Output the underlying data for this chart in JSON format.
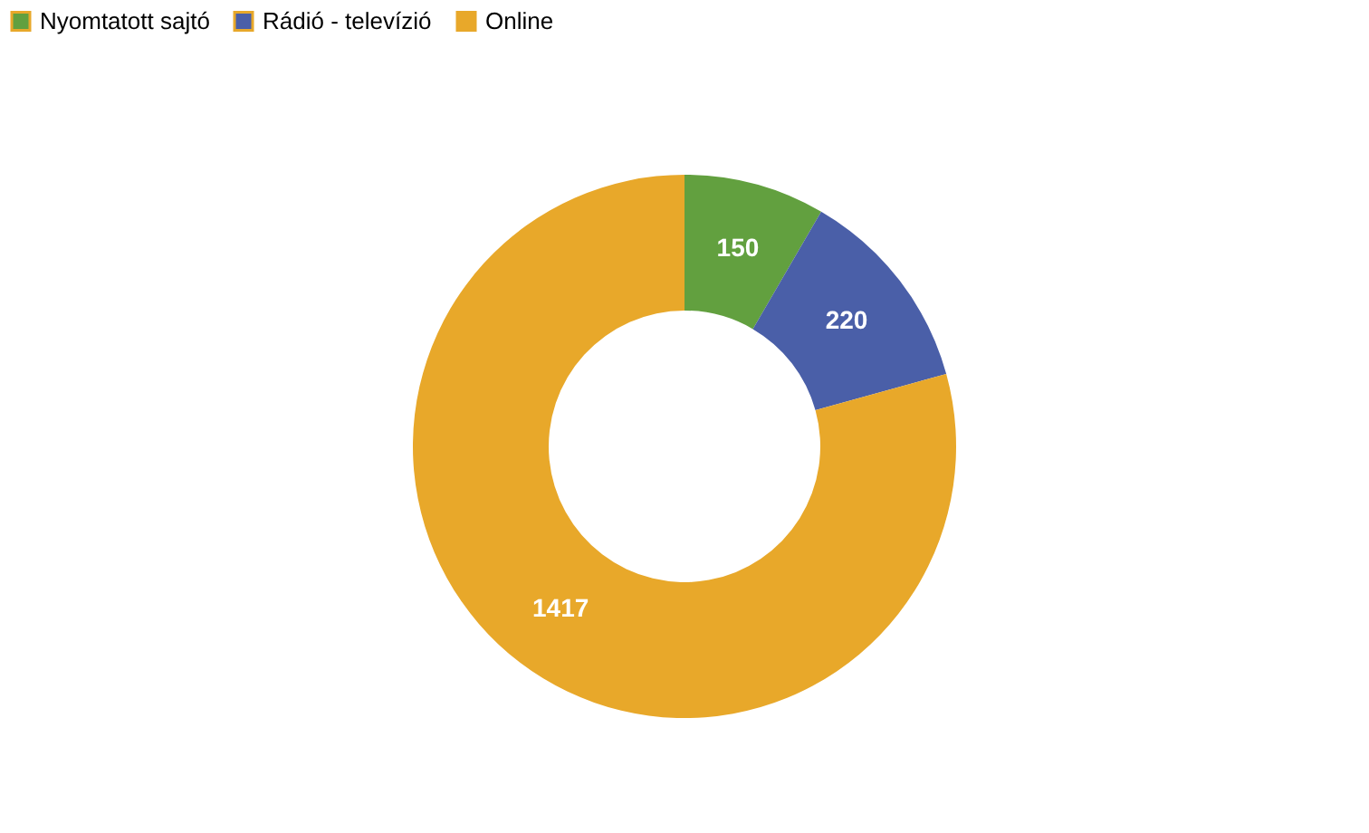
{
  "chart_data": {
    "type": "donut",
    "categories": [
      "Nyomtatott sajtó",
      "Rádió - televízió",
      "Online"
    ],
    "values": [
      150,
      220,
      1417
    ],
    "colors": [
      "#62a03f",
      "#4a5fa8",
      "#e8a82a"
    ],
    "legend": "top",
    "data_labels": true
  }
}
